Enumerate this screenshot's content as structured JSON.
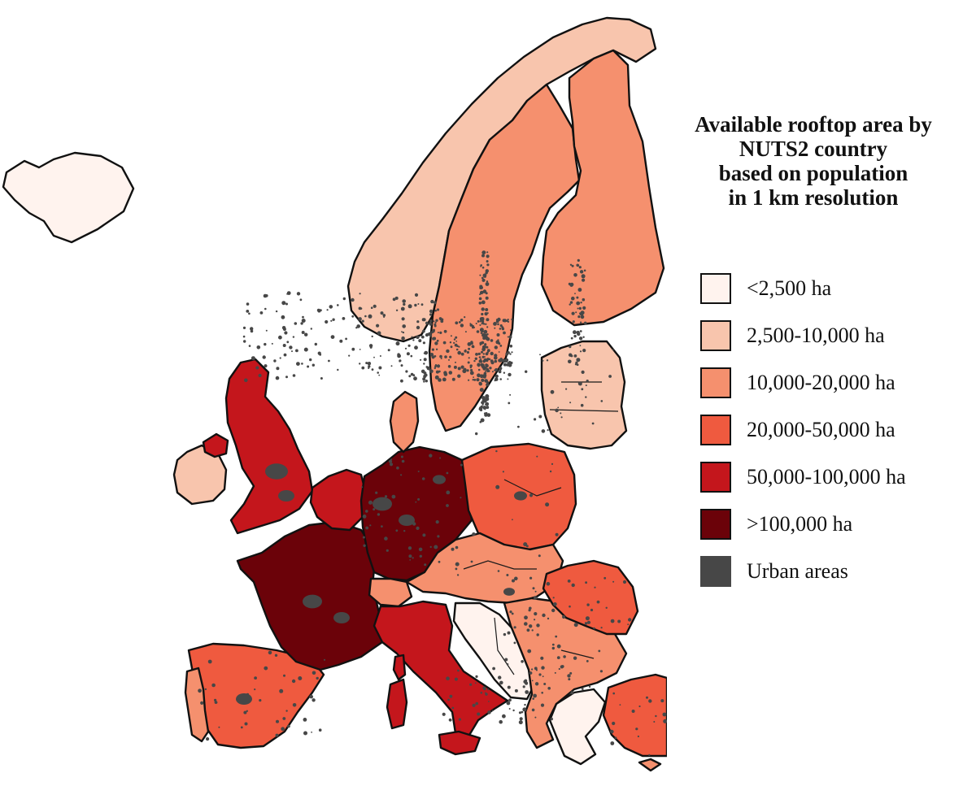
{
  "map": {
    "legend_title": [
      "Available rooftop area by",
      "NUTS2 country",
      "based on population",
      "in 1 km resolution"
    ],
    "legend_items": [
      {
        "label": "<2,500 ha",
        "color": "#fff3ee"
      },
      {
        "label": "2,500-10,000 ha",
        "color": "#f8c5ad"
      },
      {
        "label": "10,000-20,000 ha",
        "color": "#f5906e"
      },
      {
        "label": "20,000-50,000 ha",
        "color": "#ef5a3f"
      },
      {
        "label": "50,000-100,000 ha",
        "color": "#c4161c"
      },
      {
        "label": ">100,000 ha",
        "color": "#6b0209"
      },
      {
        "label": "Urban areas",
        "color": "#474747"
      }
    ]
  }
}
